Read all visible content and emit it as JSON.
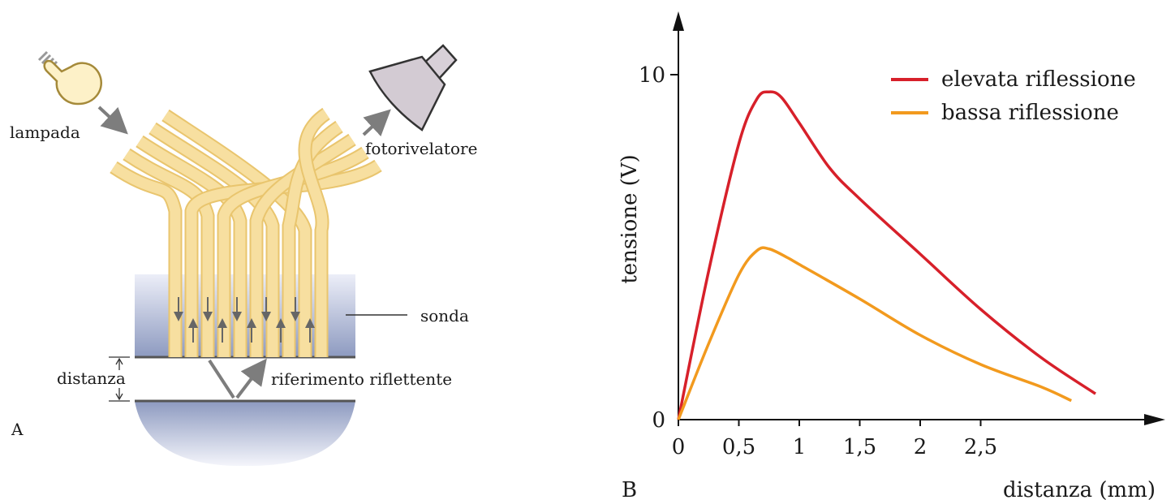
{
  "panel_a": {
    "letter": "A",
    "labels": {
      "lamp": "lampada",
      "detector": "fotorivelatore",
      "probe": "sonda",
      "distance": "distanza",
      "reflector": "riferimento riflettente"
    }
  },
  "panel_b": {
    "letter": "B"
  },
  "colors": {
    "high": "#d7202a",
    "low": "#f29a1e",
    "fiber": "#f7dfa0",
    "probe_top": "#eceef8",
    "probe_bottom": "#8d9ac0"
  },
  "chart_data": {
    "type": "line",
    "xlabel": "distanza (mm)",
    "ylabel": "tensione (V)",
    "xlim": [
      0,
      3.9
    ],
    "ylim": [
      0,
      11.5
    ],
    "x_ticks": [
      "0",
      "0,5",
      "1",
      "1,5",
      "2",
      "2,5"
    ],
    "x_tick_values": [
      0,
      0.5,
      1,
      1.5,
      2,
      2.5
    ],
    "y_ticks": [
      "0",
      "10"
    ],
    "y_tick_values": [
      0,
      10
    ],
    "legend_position": "top-right",
    "series": [
      {
        "name": "elevata riflessione",
        "color": "#d7202a",
        "points": [
          [
            0,
            0
          ],
          [
            0.25,
            4.3
          ],
          [
            0.5,
            8.0
          ],
          [
            0.65,
            9.3
          ],
          [
            0.75,
            9.5
          ],
          [
            0.85,
            9.35
          ],
          [
            1.0,
            8.6
          ],
          [
            1.25,
            7.3
          ],
          [
            1.5,
            6.4
          ],
          [
            2.0,
            4.8
          ],
          [
            2.5,
            3.2
          ],
          [
            3.0,
            1.8
          ],
          [
            3.45,
            0.75
          ]
        ]
      },
      {
        "name": "bassa riflessione",
        "color": "#f29a1e",
        "points": [
          [
            0,
            0
          ],
          [
            0.25,
            2.2
          ],
          [
            0.5,
            4.2
          ],
          [
            0.65,
            4.9
          ],
          [
            0.75,
            4.95
          ],
          [
            0.9,
            4.7
          ],
          [
            1.0,
            4.5
          ],
          [
            1.5,
            3.5
          ],
          [
            2.0,
            2.45
          ],
          [
            2.5,
            1.6
          ],
          [
            3.0,
            0.95
          ],
          [
            3.25,
            0.55
          ]
        ]
      }
    ]
  }
}
